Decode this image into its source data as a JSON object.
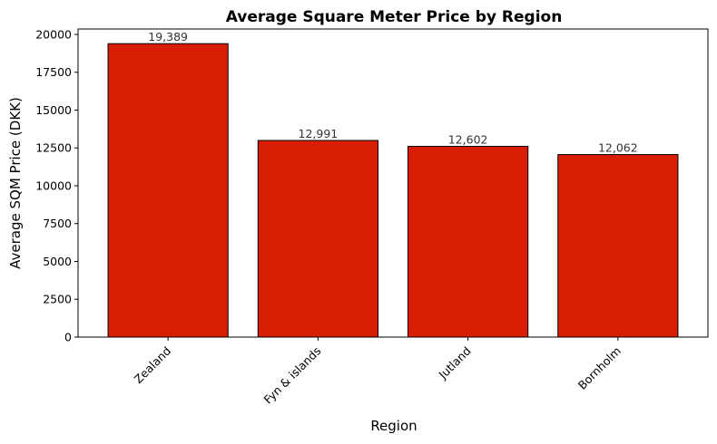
{
  "chart_data": {
    "type": "bar",
    "title": "Average Square Meter Price by Region",
    "xlabel": "Region",
    "ylabel": "Average SQM Price (DKK)",
    "categories": [
      "Zealand",
      "Fyn & islands",
      "Jutland",
      "Bornholm"
    ],
    "values": [
      19389,
      12991,
      12602,
      12062
    ],
    "data_labels": [
      "19,389",
      "12,991",
      "12,602",
      "12,062"
    ],
    "ylim": [
      0,
      20358
    ],
    "yticks": [
      0,
      2500,
      5000,
      7500,
      10000,
      12500,
      15000,
      17500,
      20000
    ],
    "ytick_labels": [
      "0",
      "2500",
      "5000",
      "7500",
      "10000",
      "12500",
      "15000",
      "17500",
      "20000"
    ],
    "bar_color": "#d81e05",
    "bar_edge_color": "#000000",
    "grid": false,
    "legend": "none"
  }
}
